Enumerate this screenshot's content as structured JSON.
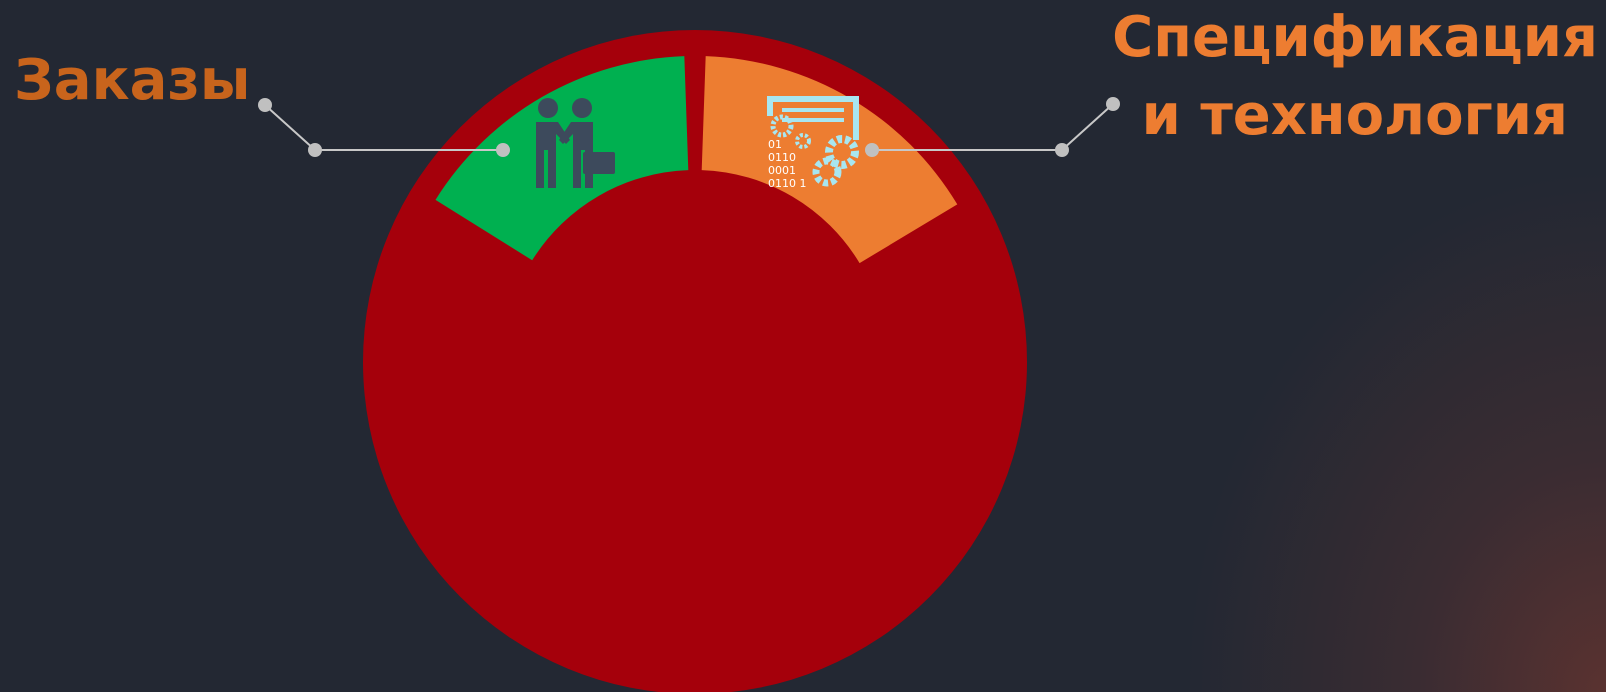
{
  "labels": {
    "left": "Заказы",
    "right": [
      "Спецификация",
      "и технология"
    ]
  },
  "icon_text": [
    "01",
    "0110",
    "0001",
    "0110 1"
  ]
}
